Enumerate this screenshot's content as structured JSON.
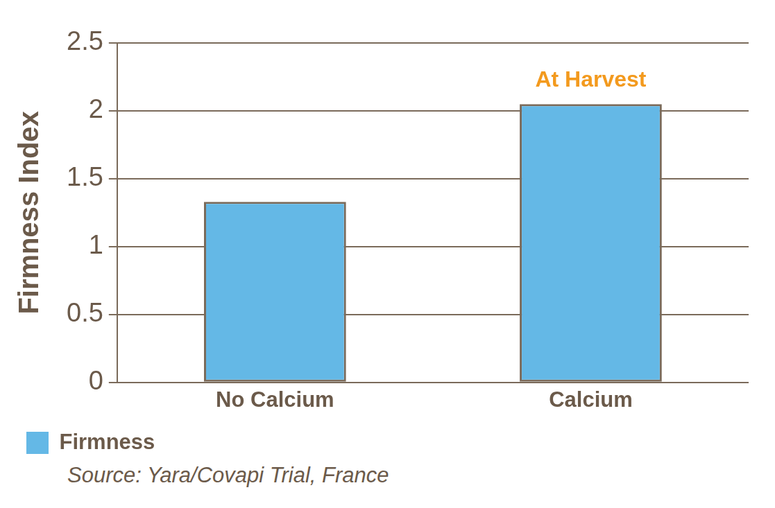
{
  "chart_data": {
    "type": "bar",
    "y_label": "Firmness Index",
    "categories": [
      "No Calcium",
      "Calcium"
    ],
    "series": [
      {
        "name": "Firmness",
        "color": "#64b8e6",
        "values": [
          1.33,
          2.05
        ]
      }
    ],
    "ylim": [
      0,
      2.5
    ],
    "yticks": [
      0,
      0.5,
      1,
      1.5,
      2,
      2.5
    ],
    "grid": true,
    "legend": "bottom",
    "annotations": [
      {
        "text": "At Harvest",
        "category": "Calcium"
      }
    ],
    "source": "Source: Yara/Covapi Trial, France"
  }
}
